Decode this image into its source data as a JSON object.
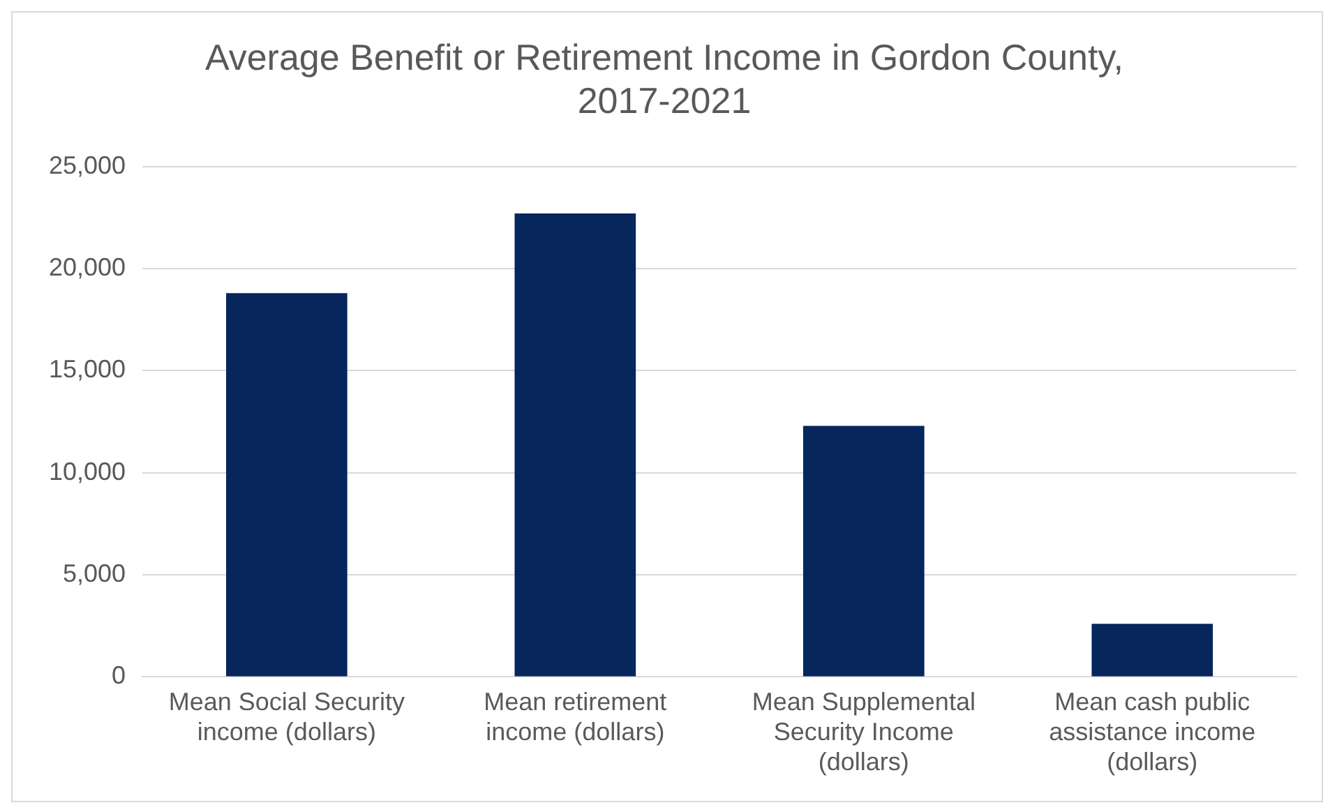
{
  "chart_data": {
    "type": "bar",
    "title": "Average Benefit or Retirement Income in Gordon County, 2017-2021",
    "categories": [
      "Mean Social Security income (dollars)",
      "Mean retirement income (dollars)",
      "Mean Supplemental Security Income (dollars)",
      "Mean cash public assistance income (dollars)"
    ],
    "values": [
      18800,
      22700,
      12300,
      2600
    ],
    "color": "#06265c",
    "ylim": [
      0,
      25000
    ],
    "yticks": [
      {
        "value": 0,
        "label": "0"
      },
      {
        "value": 5000,
        "label": "5,000"
      },
      {
        "value": 10000,
        "label": "10,000"
      },
      {
        "value": 15000,
        "label": "15,000"
      },
      {
        "value": 20000,
        "label": "20,000"
      },
      {
        "value": 25000,
        "label": "25,000"
      }
    ],
    "grid": "y",
    "legend": false
  }
}
